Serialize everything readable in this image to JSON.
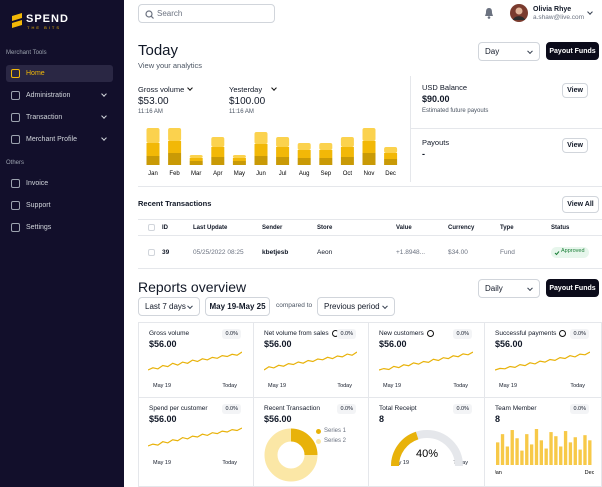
{
  "sidebar": {
    "logo": "SPEND",
    "logo_sub": "THE BITS",
    "sections": [
      {
        "title": "Merchant Tools",
        "items": [
          "Home",
          "Administration",
          "Transaction",
          "Merchant Profile"
        ]
      },
      {
        "title": "Others",
        "items": [
          "Invoice",
          "Support",
          "Settings"
        ]
      }
    ]
  },
  "topbar": {
    "search": "Search",
    "user_name": "Olivia Rhye",
    "user_email": "a.shaw@live.com"
  },
  "today": {
    "title": "Today",
    "subtitle": "View your analytics",
    "period": "Day",
    "button": "Payout Funds",
    "metrics": [
      {
        "label": "Gross volume",
        "value": "$53.00",
        "time": "11:16 AM"
      },
      {
        "label": "Yesterday",
        "value": "$100.00",
        "time": "11:16 AM"
      }
    ],
    "chart": {
      "type": "bar",
      "stacked": true,
      "categories": [
        "Jan",
        "Feb",
        "Mar",
        "Apr",
        "May",
        "Jun",
        "Jul",
        "Aug",
        "Sep",
        "Oct",
        "Nov",
        "Dec"
      ],
      "series": [
        {
          "color": "#c99a06",
          "values": [
            9,
            12,
            4,
            8,
            4,
            9,
            8,
            7,
            7,
            8,
            12,
            6
          ]
        },
        {
          "color": "#f2b807",
          "values": [
            13,
            12,
            3,
            10,
            3,
            12,
            10,
            8,
            8,
            10,
            12,
            6
          ]
        },
        {
          "color": "#fbd24e",
          "values": [
            15,
            13,
            3,
            10,
            3,
            12,
            10,
            7,
            7,
            10,
            13,
            6
          ]
        }
      ]
    },
    "balance": [
      {
        "label": "USD Balance",
        "value": "$90.00",
        "note": "Estimated future payouts",
        "button": "View"
      },
      {
        "label": "Payouts",
        "value": "-",
        "button": "View"
      }
    ]
  },
  "transactions": {
    "title": "Recent Transactions",
    "button": "View All",
    "columns": [
      "ID",
      "Last Update",
      "Sender",
      "Store",
      "Value",
      "Currency",
      "Type",
      "Status"
    ],
    "rows": [
      [
        "39",
        "05/25/2022 08:25",
        "kbetjesb",
        "Aeon",
        "+1.8948...",
        "$34.00",
        "Fund",
        "Approved"
      ]
    ]
  },
  "reports": {
    "title": "Reports overview",
    "period": "Daily",
    "button": "Payout Funds",
    "range": "Last 7 days",
    "dates": "May 19-May 25",
    "compare_label": "compared to",
    "compare": "Previous period",
    "cards": [
      {
        "title": "Gross volume",
        "change": "0.0%",
        "value": "$56.00",
        "start": "May 19",
        "end": "Today",
        "chart": {
          "type": "line",
          "color": "#e8b20a",
          "values": [
            3,
            4,
            3.5,
            5,
            4.5,
            6,
            5.2,
            6.5,
            6,
            7.4,
            6.8,
            8,
            7.5,
            8.6,
            8.2,
            9.4,
            9,
            10,
            9.6,
            11
          ]
        }
      },
      {
        "title": "Net volume from sales",
        "info": true,
        "change": "0.0%",
        "value": "$56.00",
        "start": "May 19",
        "end": "Today",
        "chart": {
          "type": "line",
          "color": "#e8b20a",
          "values": [
            2,
            3.5,
            3,
            4.2,
            3.8,
            5,
            4.6,
            5.8,
            5.2,
            6.5,
            6,
            7.2,
            6.8,
            8,
            7.4,
            8.6,
            8.2,
            9.5,
            9,
            10.5
          ]
        }
      },
      {
        "title": "New customers",
        "info": true,
        "change": "0.0%",
        "value": "$56.00",
        "start": "May 19",
        "end": "Today",
        "chart": {
          "type": "line",
          "color": "#e8b20a",
          "values": [
            3,
            3.6,
            3.2,
            4.5,
            4,
            5.2,
            4.8,
            6,
            5.5,
            6.6,
            6.2,
            7.5,
            7,
            8.2,
            7.8,
            9,
            8.6,
            9.8,
            9.4,
            10.6
          ]
        }
      },
      {
        "title": "Successful payments",
        "info": true,
        "change": "0.0%",
        "value": "$56.00",
        "start": "May 19",
        "end": "Today",
        "chart": {
          "type": "line",
          "color": "#e8b20a",
          "values": [
            2.5,
            3.2,
            3,
            4,
            3.6,
            4.8,
            4.4,
            5.6,
            5.1,
            6.3,
            5.9,
            7,
            6.6,
            7.8,
            7.4,
            8.6,
            8.1,
            9.3,
            9,
            10.2
          ]
        }
      },
      {
        "title": "Spend per customer",
        "change": "0.0%",
        "value": "$56.00",
        "start": "May 19",
        "end": "Today",
        "chart": {
          "type": "line",
          "color": "#e8b20a",
          "values": [
            4,
            4.6,
            4.3,
            5.4,
            5,
            6,
            5.7,
            6.7,
            6.3,
            7.2,
            6.9,
            7.8,
            7.4,
            8.3,
            8,
            8.8,
            8.5,
            9.3,
            9,
            9.8
          ]
        }
      },
      {
        "title": "Recent Transaction",
        "change": "0.0%",
        "value": "$56.00",
        "chart": {
          "type": "donut",
          "series": [
            {
              "name": "Series 1",
              "color": "#e8b20a",
              "value": 25
            },
            {
              "name": "Series 2",
              "color": "#fbe7a6",
              "value": 75
            }
          ]
        }
      },
      {
        "title": "Total Receipt",
        "change": "0.0%",
        "value": "8",
        "start": "May 19",
        "end": "Today",
        "chart": {
          "type": "gauge",
          "color": "#e8b20a",
          "lim": [
            0,
            100
          ],
          "value": 40,
          "value_label": "40%"
        }
      },
      {
        "title": "Team Member",
        "change": "0.0%",
        "value": "8",
        "chart": {
          "type": "bar",
          "color": "#f7c948",
          "categories": [
            "Jan",
            null,
            null,
            null,
            null,
            null,
            null,
            null,
            null,
            null,
            null,
            null,
            null,
            null,
            null,
            null,
            null,
            null,
            null,
            "Dec"
          ],
          "values": [
            22,
            30,
            18,
            34,
            26,
            14,
            30,
            20,
            35,
            24,
            16,
            32,
            28,
            18,
            33,
            22,
            27,
            15,
            29,
            24
          ]
        }
      }
    ]
  }
}
